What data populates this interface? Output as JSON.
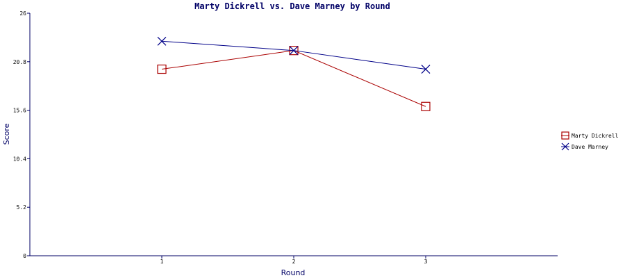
{
  "chart_data": {
    "type": "line",
    "title": "Marty Dickrell vs. Dave Marney by Round",
    "xlabel": "Round",
    "ylabel": "Score",
    "x": [
      1,
      2,
      3
    ],
    "x_tick_labels": [
      "1",
      "2",
      "3"
    ],
    "xlim": [
      0,
      4
    ],
    "ylim": [
      0,
      26
    ],
    "y_ticks": [
      0,
      5.2,
      10.4,
      15.6,
      20.8,
      26
    ],
    "y_tick_labels": [
      "0",
      "5.2",
      "10.4",
      "15.6",
      "20.8",
      "26"
    ],
    "grid": false,
    "legend_position": "right",
    "series": [
      {
        "name": "Marty Dickrell",
        "values": [
          20,
          22,
          16
        ],
        "color": "#aa0000",
        "marker": "square"
      },
      {
        "name": "Dave Marney",
        "values": [
          23,
          22,
          20
        ],
        "color": "#000088",
        "marker": "x"
      }
    ]
  }
}
